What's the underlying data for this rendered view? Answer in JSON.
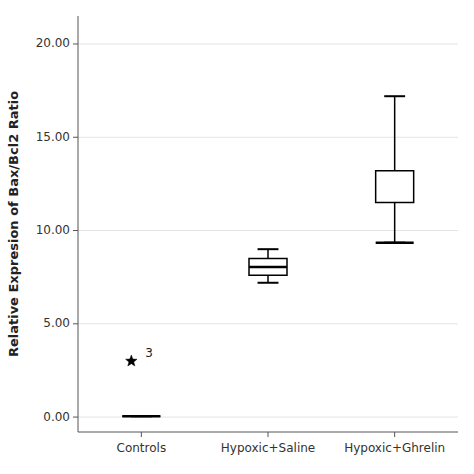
{
  "chart_data": {
    "type": "box",
    "categories": [
      "Controls",
      "Hypoxic+Saline",
      "Hypoxic+Ghrelin"
    ],
    "ylabel": "Relative Expresion of Bax/Bcl2 Ratio",
    "ylim": [
      -0.8,
      21.5
    ],
    "yticks": [
      {
        "value": 0.0,
        "label": "0.00"
      },
      {
        "value": 5.0,
        "label": "5.00"
      },
      {
        "value": 10.0,
        "label": "10.00"
      },
      {
        "value": 15.0,
        "label": "15.00"
      },
      {
        "value": 20.0,
        "label": "20.00"
      }
    ],
    "color": "black",
    "boxes": [
      {
        "median": 0.05,
        "q1": 0.05,
        "q3": 0.05,
        "whisker_low": 0.05,
        "whisker_high": 0.05,
        "outliers": [
          3.0
        ],
        "outlier_labels": [
          "3"
        ]
      },
      {
        "median": 8.05,
        "q1": 7.6,
        "q3": 8.5,
        "whisker_low": 7.2,
        "whisker_high": 9.0,
        "outliers": [],
        "outlier_labels": []
      },
      {
        "median": 9.35,
        "q1": 11.5,
        "q3": 13.2,
        "whisker_low": 9.35,
        "whisker_high": 17.2,
        "outliers": [],
        "outlier_labels": []
      }
    ]
  }
}
